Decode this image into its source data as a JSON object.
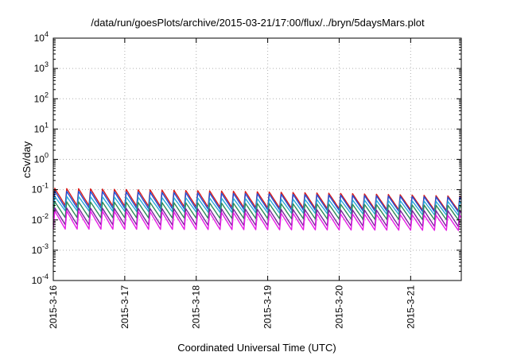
{
  "chart_data": {
    "type": "line",
    "title": "/data/run/goesPlots/archive/2015-03-21/17:00/flux/../bryn/5daysMars.plot",
    "xlabel": "Coordinated Universal Time (UTC)",
    "ylabel": "cSv/day",
    "y_scale": "log",
    "ylim": [
      0.0001,
      10000
    ],
    "y_ticks": [
      {
        "base": "10",
        "exp": "4",
        "value": 10000
      },
      {
        "base": "10",
        "exp": "3",
        "value": 1000
      },
      {
        "base": "10",
        "exp": "2",
        "value": 100
      },
      {
        "base": "10",
        "exp": "1",
        "value": 10
      },
      {
        "base": "10",
        "exp": "0",
        "value": 1
      },
      {
        "base": "10",
        "exp": "-1",
        "value": 0.1
      },
      {
        "base": "10",
        "exp": "-2",
        "value": 0.01
      },
      {
        "base": "10",
        "exp": "-3",
        "value": 0.001
      },
      {
        "base": "10",
        "exp": "-4",
        "value": 0.0001
      }
    ],
    "x_ticks": [
      "2015-3-16",
      "2015-3-17",
      "2015-3-18",
      "2015-3-19",
      "2015-3-20",
      "2015-3-21"
    ],
    "xlim": [
      "2015-03-16 00:00",
      "2015-03-21 17:00"
    ],
    "grid": true,
    "legend": "none",
    "sawtooth_period_hours": 4,
    "series": [
      {
        "color": "#d81b1b",
        "peak_start": 0.11,
        "peak_end": 0.06,
        "trough_start": 0.03,
        "trough_end": 0.02
      },
      {
        "color": "#1f4fd6",
        "peak_start": 0.09,
        "peak_end": 0.055,
        "trough_start": 0.025,
        "trough_end": 0.018
      },
      {
        "color": "#2aa9d8",
        "peak_start": 0.06,
        "peak_end": 0.04,
        "trough_start": 0.02,
        "trough_end": 0.014
      },
      {
        "color": "#2e8b57",
        "peak_start": 0.04,
        "peak_end": 0.03,
        "trough_start": 0.012,
        "trough_end": 0.01
      },
      {
        "color": "#7b1f9e",
        "peak_start": 0.025,
        "peak_end": 0.02,
        "trough_start": 0.007,
        "trough_end": 0.006
      },
      {
        "color": "#e61ee6",
        "peak_start": 0.02,
        "peak_end": 0.014,
        "trough_start": 0.005,
        "trough_end": 0.0045
      }
    ]
  }
}
